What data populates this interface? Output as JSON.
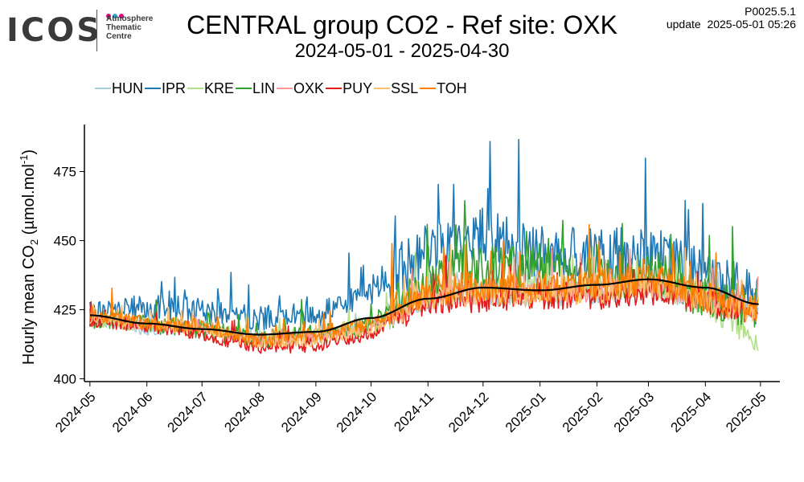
{
  "logo": {
    "word": "ICOS",
    "sub_lines": [
      "Atmosphere",
      "Thematic",
      "Centre"
    ],
    "dot_colors": [
      "#e6007e",
      "#2fa4dd",
      "#e6007e"
    ]
  },
  "header": {
    "title": "CENTRAL group CO2 - Ref site: OXK",
    "subtitle": "2024-05-01 - 2025-04-30",
    "version": "P0025.5.1",
    "update_label": "update",
    "update_value": "2025-05-01 05:26"
  },
  "axis": {
    "ylabel_main": "Hourly mean  CO",
    "ylabel_sub": "2",
    "ylabel_unit_open": " (µmol.mol",
    "ylabel_sup": "-1",
    "ylabel_close": ")"
  },
  "chart_data": {
    "type": "line",
    "x_type": "date",
    "xlim": [
      "2024-05-01",
      "2025-04-30"
    ],
    "ylim": [
      399,
      492
    ],
    "y_ticks": [
      400,
      425,
      450,
      475
    ],
    "x_ticks": [
      "2024-05",
      "2024-06",
      "2024-07",
      "2024-08",
      "2024-09",
      "2024-10",
      "2024-11",
      "2024-12",
      "2025-01",
      "2025-02",
      "2025-03",
      "2025-04",
      "2025-05"
    ],
    "legend_position": "top-left",
    "grid": false,
    "series": [
      {
        "name": "HUN",
        "color": "#a6cee3",
        "x": [
          "2024-05-01",
          "2024-06-01",
          "2024-07-01",
          "2024-08-01",
          "2024-09-01",
          "2024-10-01",
          "2024-11-01",
          "2024-12-01",
          "2025-01-01",
          "2025-02-01",
          "2025-03-01",
          "2025-04-01",
          "2025-04-30"
        ],
        "y": [
          421,
          418,
          419,
          414,
          416,
          419,
          431,
          431,
          431,
          432,
          434,
          429,
          426
        ]
      },
      {
        "name": "IPR",
        "color": "#1f78b4",
        "x": [
          "2024-05-01",
          "2024-06-01",
          "2024-07-01",
          "2024-08-01",
          "2024-09-01",
          "2024-10-01",
          "2024-11-01",
          "2024-12-01",
          "2025-01-01",
          "2025-02-01",
          "2025-03-01",
          "2025-04-01",
          "2025-04-30"
        ],
        "y": [
          424,
          426,
          425,
          422,
          423,
          431,
          447,
          452,
          446,
          444,
          446,
          437,
          429
        ]
      },
      {
        "name": "KRE",
        "color": "#b2df8a",
        "x": [
          "2024-05-01",
          "2024-06-01",
          "2024-07-01",
          "2024-08-01",
          "2024-09-01",
          "2024-10-01",
          "2024-11-01",
          "2024-12-01",
          "2025-01-01",
          "2025-02-01",
          "2025-03-01",
          "2025-04-01",
          "2025-04-30"
        ],
        "y": [
          421,
          419,
          419,
          415,
          416,
          419,
          431,
          432,
          432,
          433,
          434,
          428,
          414
        ]
      },
      {
        "name": "LIN",
        "color": "#33a02c",
        "x": [
          "2024-05-01",
          "2024-06-01",
          "2024-07-01",
          "2024-08-01",
          "2024-09-01",
          "2024-10-01",
          "2024-11-01",
          "2024-12-01",
          "2025-01-01",
          "2025-02-01",
          "2025-03-01",
          "2025-04-01",
          "2025-04-30"
        ],
        "y": [
          422,
          420,
          418,
          414,
          416,
          419,
          437,
          440,
          441,
          436,
          437,
          430,
          425
        ]
      },
      {
        "name": "OXK",
        "color": "#fb9a99",
        "x": [
          "2024-05-01",
          "2024-06-01",
          "2024-07-01",
          "2024-08-01",
          "2024-09-01",
          "2024-10-01",
          "2024-11-01",
          "2024-12-01",
          "2025-01-01",
          "2025-02-01",
          "2025-03-01",
          "2025-04-01",
          "2025-04-30"
        ],
        "y": [
          422,
          419,
          418,
          414,
          415,
          418,
          430,
          431,
          431,
          432,
          434,
          428,
          425
        ]
      },
      {
        "name": "PUY",
        "color": "#e31a1c",
        "x": [
          "2024-05-01",
          "2024-06-01",
          "2024-07-01",
          "2024-08-01",
          "2024-09-01",
          "2024-10-01",
          "2024-11-01",
          "2024-12-01",
          "2025-01-01",
          "2025-02-01",
          "2025-03-01",
          "2025-04-01",
          "2025-04-30"
        ],
        "y": [
          421,
          419,
          416,
          411,
          412,
          416,
          428,
          429,
          430,
          430,
          432,
          427,
          425
        ]
      },
      {
        "name": "SSL",
        "color": "#fdbf6f",
        "x": [
          "2024-05-01",
          "2024-06-01",
          "2024-07-01",
          "2024-08-01",
          "2024-09-01",
          "2024-10-01",
          "2024-11-01",
          "2024-12-01",
          "2025-01-01",
          "2025-02-01",
          "2025-03-01",
          "2025-04-01",
          "2025-04-30"
        ],
        "y": [
          422,
          420,
          418,
          413,
          414,
          418,
          430,
          431,
          431,
          432,
          434,
          428,
          425
        ]
      },
      {
        "name": "TOH",
        "color": "#ff7f00",
        "x": [
          "2024-05-01",
          "2024-06-01",
          "2024-07-01",
          "2024-08-01",
          "2024-09-01",
          "2024-10-01",
          "2024-11-01",
          "2024-12-01",
          "2025-01-01",
          "2025-02-01",
          "2025-03-01",
          "2025-04-01",
          "2025-04-30"
        ],
        "y": [
          424,
          420,
          419,
          414,
          416,
          420,
          432,
          434,
          433,
          434,
          436,
          430,
          426
        ]
      }
    ],
    "trend": {
      "color": "#000000",
      "x": [
        "2024-05-01",
        "2024-06-01",
        "2024-07-01",
        "2024-08-01",
        "2024-09-01",
        "2024-10-01",
        "2024-11-01",
        "2024-12-01",
        "2025-01-01",
        "2025-02-01",
        "2025-03-01",
        "2025-04-01",
        "2025-04-30"
      ],
      "y": [
        423,
        420,
        418,
        416,
        417,
        422,
        429,
        433,
        432,
        434,
        436,
        433,
        427
      ]
    }
  }
}
